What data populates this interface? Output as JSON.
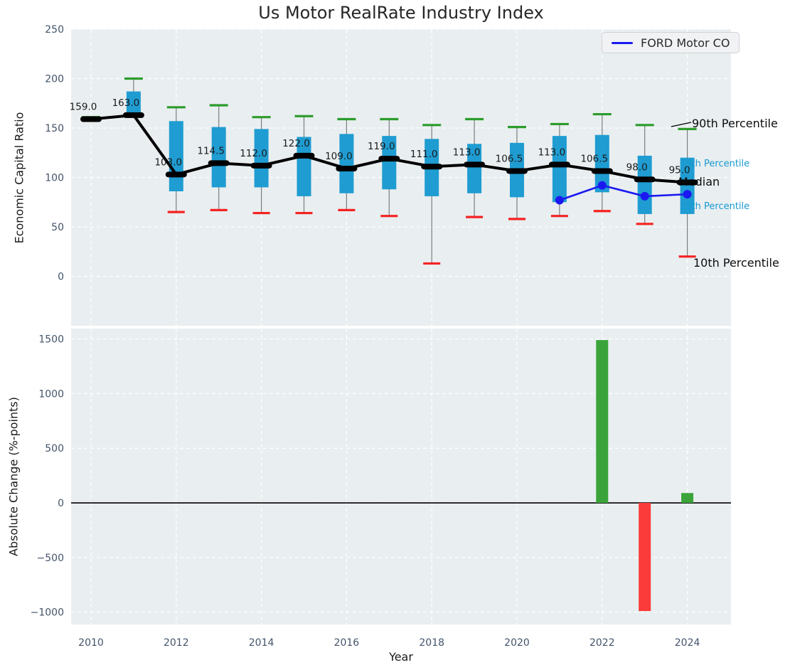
{
  "title": "Us Motor RealRate Industry Index",
  "legend": {
    "label": "FORD Motor CO"
  },
  "annotations": {
    "p90": "90th Percentile",
    "p75": "75th Percentile",
    "median": "Median",
    "p25": "25th Percentile",
    "p10": "10th Percentile"
  },
  "colors": {
    "box": "#1f9cd1",
    "high_cap": "#2c9c2c",
    "low_cap": "#f52222",
    "median": "#000000",
    "ford_line": "#1a1af0",
    "bar_up": "#3aa43a",
    "bar_down": "#fb3a3a",
    "axes_bg": "#e9eef0",
    "grid": "#ffffff",
    "tick": "#44546a",
    "whisker": "#7d7d7d",
    "annotation_cyan": "#189ad2"
  },
  "chart_data": [
    {
      "type": "boxplot+line",
      "title": "Us Motor RealRate Industry Index",
      "ylabel": "Economic Capital Ratio",
      "ylim": [
        -50,
        250
      ],
      "yticks": [
        250,
        200,
        150,
        100,
        50,
        0
      ],
      "ytick_labels": [
        "250",
        "200",
        "150",
        "100",
        "50",
        "0"
      ],
      "xticks": [
        2010,
        2012,
        2014,
        2016,
        2018,
        2020,
        2022,
        2024
      ],
      "grid": true,
      "legend_position": "upper right",
      "years": [
        2010,
        2011,
        2012,
        2013,
        2014,
        2015,
        2016,
        2017,
        2018,
        2019,
        2020,
        2021,
        2022,
        2023,
        2024
      ],
      "p90": [
        161,
        200,
        171,
        173,
        161,
        162,
        159,
        159,
        153,
        159,
        151,
        154,
        164,
        153,
        149
      ],
      "q3": [
        160,
        187,
        157,
        151,
        149,
        141,
        144,
        142,
        139,
        134,
        135,
        142,
        143,
        122,
        120
      ],
      "median": [
        159.0,
        163.0,
        103.0,
        114.5,
        112.0,
        122.0,
        109.0,
        119.0,
        111.0,
        113.0,
        106.5,
        113.0,
        106.5,
        98.0,
        95.0
      ],
      "median_labels": [
        "159.0",
        "163.0",
        "103.0",
        "114.5",
        "112.0",
        "122.0",
        "109.0",
        "119.0",
        "111.0",
        "113.0",
        "106.5",
        "113.0",
        "106.5",
        "98.0",
        "95.0"
      ],
      "q1": [
        158,
        163,
        86,
        90,
        90,
        81,
        84,
        88,
        81,
        84,
        80,
        75,
        85,
        63,
        63
      ],
      "p10": [
        158,
        162,
        65,
        67,
        64,
        64,
        67,
        61,
        13,
        60,
        58,
        61,
        66,
        53,
        20
      ],
      "series": [
        {
          "name": "FORD Motor CO",
          "x": [
            2021,
            2022,
            2023,
            2024
          ],
          "values": [
            77,
            92,
            81,
            83
          ]
        }
      ]
    },
    {
      "type": "bar",
      "ylabel": "Absolute Change (%-points)",
      "xlabel": "Year",
      "ylim": [
        -1113,
        1595
      ],
      "yticks": [
        1500,
        1000,
        500,
        0,
        -500,
        -1000
      ],
      "ytick_labels": [
        "1500",
        "1000",
        "500",
        "0",
        "−500",
        "−1000"
      ],
      "xticks": [
        2010,
        2012,
        2014,
        2016,
        2018,
        2020,
        2022,
        2024
      ],
      "xtick_labels": [
        "2010",
        "2012",
        "2014",
        "2016",
        "2018",
        "2020",
        "2022",
        "2024"
      ],
      "grid": true,
      "zero_line": true,
      "categories": [
        2010,
        2011,
        2012,
        2013,
        2014,
        2015,
        2016,
        2017,
        2018,
        2019,
        2020,
        2021,
        2022,
        2023,
        2024
      ],
      "values": [
        0,
        0,
        0,
        0,
        0,
        0,
        0,
        0,
        0,
        0,
        0,
        0,
        1490,
        -990,
        90
      ]
    }
  ]
}
